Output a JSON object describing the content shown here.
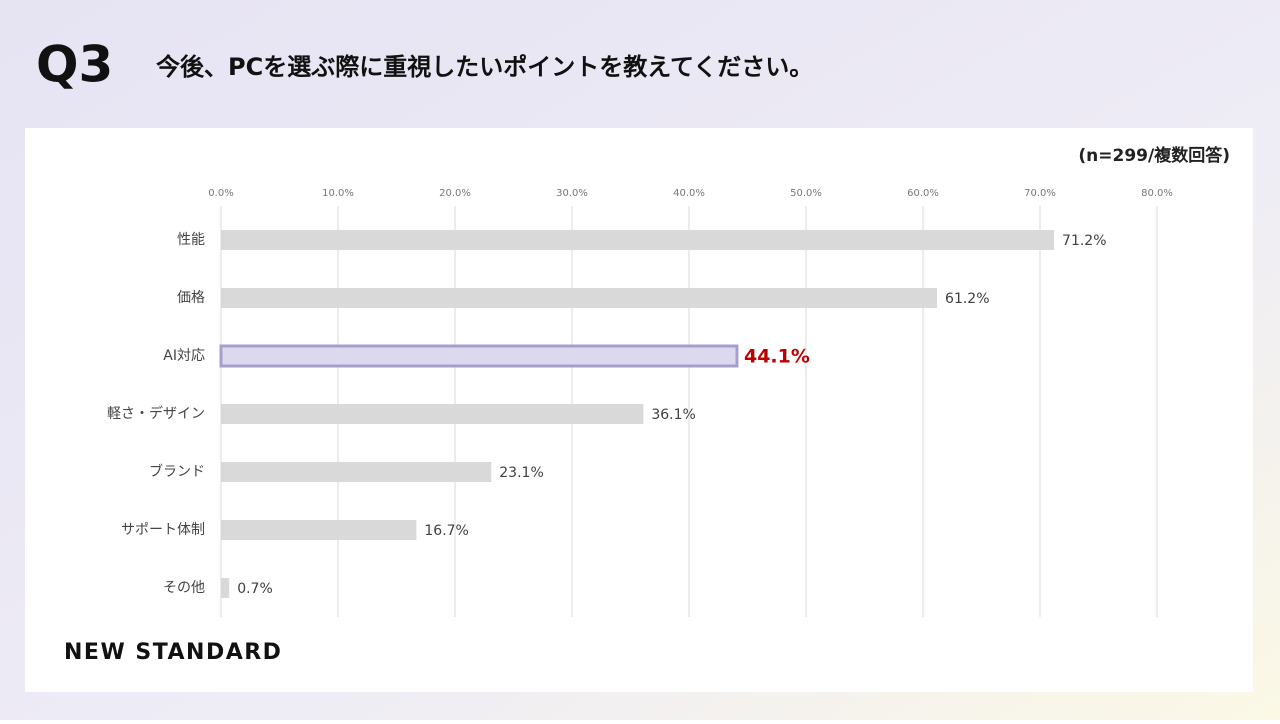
{
  "header": {
    "number": "Q3",
    "question": "今後、PCを選ぶ際に重視したいポイントを教えてください。"
  },
  "chart_data": {
    "type": "bar",
    "orientation": "horizontal",
    "note": "(n=299/複数回答)",
    "categories": [
      "性能",
      "価格",
      "AI対応",
      "軽さ・デザイン",
      "ブランド",
      "サポート体制",
      "その他"
    ],
    "values": [
      71.2,
      61.2,
      44.1,
      36.1,
      23.1,
      16.7,
      0.7
    ],
    "value_labels": [
      "71.2%",
      "61.2%",
      "44.1%",
      "36.1%",
      "23.1%",
      "16.7%",
      "0.7%"
    ],
    "colors": [
      "#d9d9d9",
      "#d9d9d9",
      "#dcd8ee",
      "#d9d9d9",
      "#d9d9d9",
      "#d9d9d9",
      "#d9d9d9"
    ],
    "label_colors": [
      "#404040",
      "#404040",
      "#c00000",
      "#404040",
      "#404040",
      "#404040",
      "#404040"
    ],
    "highlight_stroke": "#a69fcc",
    "xlim": [
      0,
      80
    ],
    "xticks": [
      {
        "value": 0,
        "label": "0.0%"
      },
      {
        "value": 10,
        "label": "10.0%"
      },
      {
        "value": 20,
        "label": "20.0%"
      },
      {
        "value": 30,
        "label": "30.0%"
      },
      {
        "value": 40,
        "label": "40.0%"
      },
      {
        "value": 50,
        "label": "50.0%"
      },
      {
        "value": 60,
        "label": "60.0%"
      },
      {
        "value": 70,
        "label": "70.0%"
      },
      {
        "value": 80,
        "label": "80.0%"
      }
    ],
    "grid": true
  },
  "footer": {
    "logo": "NEW STANDARD"
  }
}
